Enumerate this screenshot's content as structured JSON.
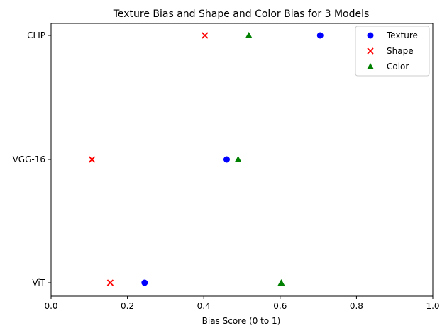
{
  "chart_data": {
    "type": "scatter",
    "title": "Texture Bias and Shape and Color Bias for 3 Models",
    "xlabel": "Bias Score (0 to 1)",
    "ylabel": "",
    "xlim": [
      0,
      1
    ],
    "x_ticks": [
      "0.0",
      "0.2",
      "0.4",
      "0.6",
      "0.8",
      "1.0"
    ],
    "categories": [
      "ViT",
      "VGG-16",
      "CLIP"
    ],
    "grid": false,
    "legend_position": "top-right",
    "series": [
      {
        "name": "Texture",
        "marker": "circle",
        "color": "#0000ff",
        "values": [
          0.245,
          0.46,
          0.705
        ]
      },
      {
        "name": "Shape",
        "marker": "x",
        "color": "#ff0000",
        "values": [
          0.155,
          0.107,
          0.403
        ]
      },
      {
        "name": "Color",
        "marker": "triangle",
        "color": "#008000",
        "values": [
          0.603,
          0.49,
          0.518
        ]
      }
    ]
  }
}
